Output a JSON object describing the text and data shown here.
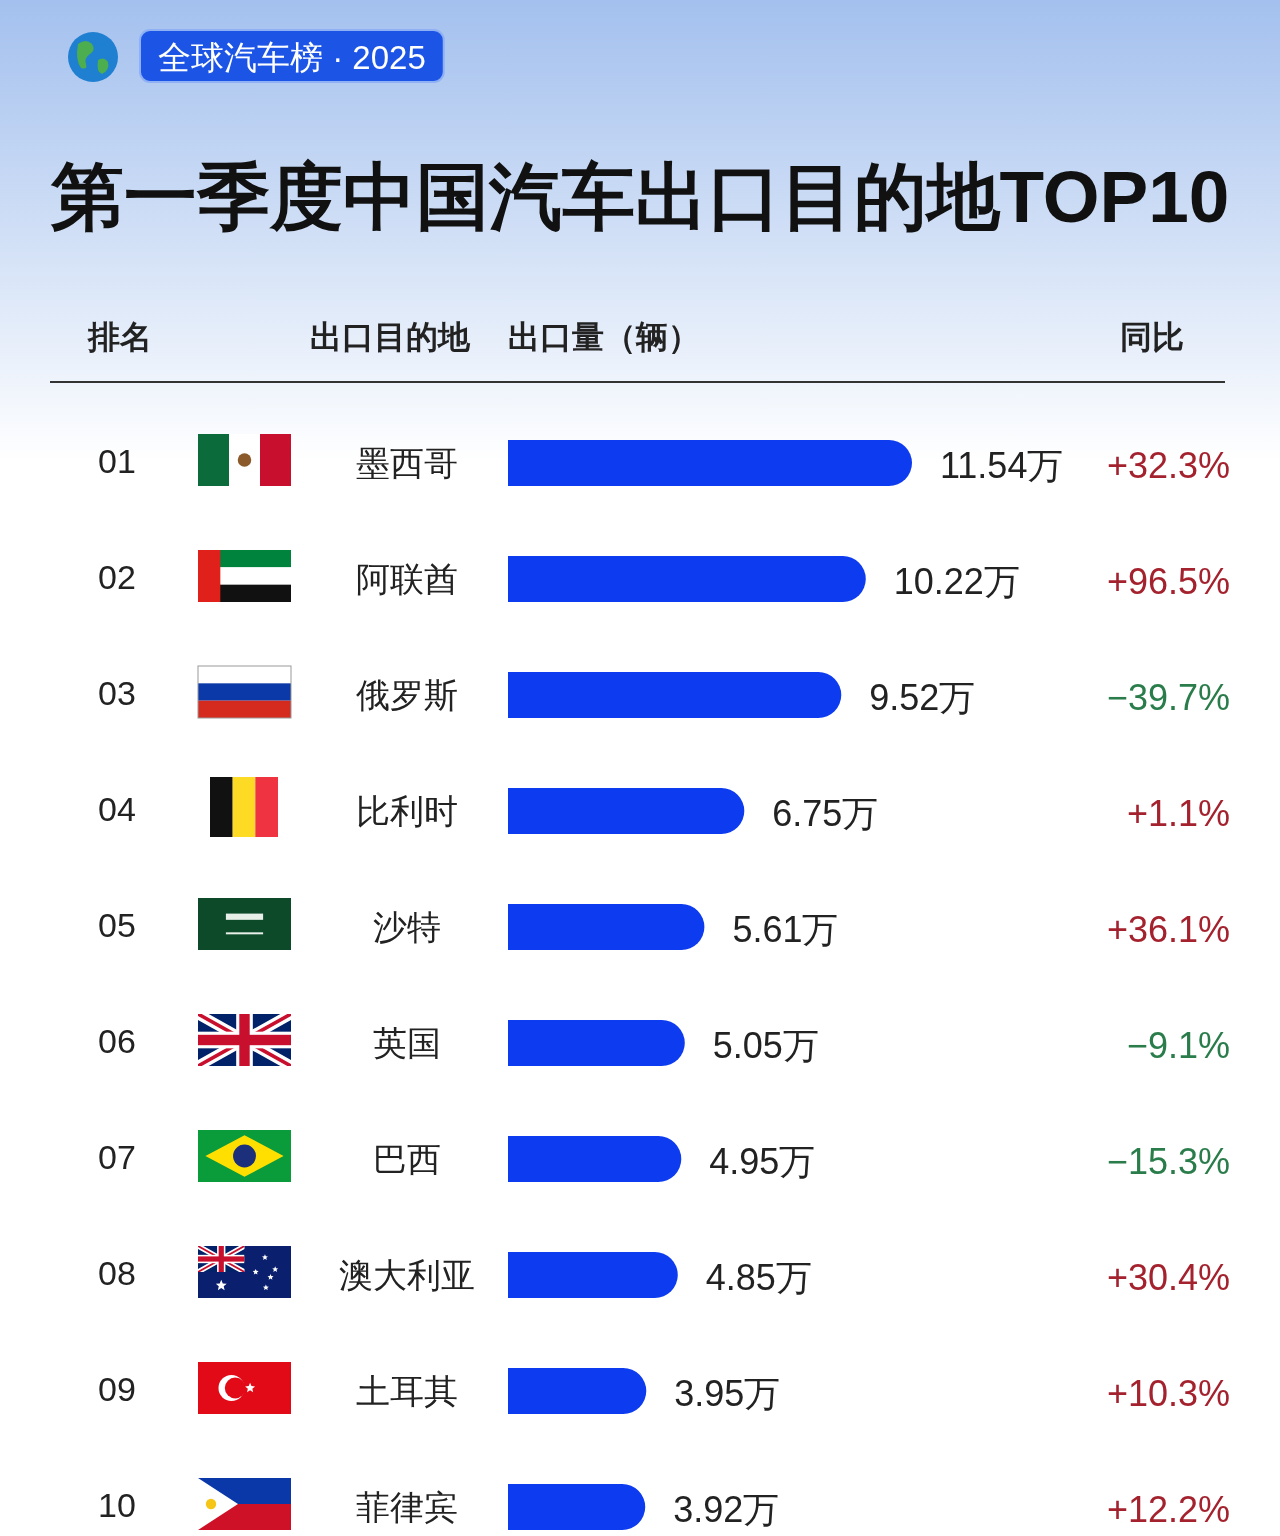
{
  "chart_data": {
    "type": "bar",
    "orientation": "horizontal",
    "title": "第一季度中国汽车出口目的地TOP10",
    "subtitle": "全球汽车榜 · 2025",
    "xlabel": "出口量（辆）",
    "ylabel": "出口目的地",
    "color": "#0d3cf0",
    "categories": [
      "墨西哥",
      "阿联酋",
      "俄罗斯",
      "比利时",
      "沙特",
      "英国",
      "巴西",
      "澳大利亚",
      "土耳其",
      "菲律宾"
    ],
    "values": [
      11.54,
      10.22,
      9.52,
      6.75,
      5.61,
      5.05,
      4.95,
      4.85,
      3.95,
      3.92
    ],
    "value_labels": [
      "11.54万",
      "10.22万",
      "9.52万",
      "6.75万",
      "5.61万",
      "5.05万",
      "4.95万",
      "4.85万",
      "3.95万",
      "3.92万"
    ],
    "annotations": [
      "排名",
      "同比",
      "01",
      "02",
      "03",
      "04",
      "05",
      "06",
      "07",
      "08",
      "09",
      "10",
      "+32.3%",
      "+96.5%",
      "−39.7%",
      "+1.1%",
      "+36.1%",
      "−9.1%",
      "−15.3%",
      "+30.4%",
      "+10.3%",
      "+12.2%"
    ]
  }
}
